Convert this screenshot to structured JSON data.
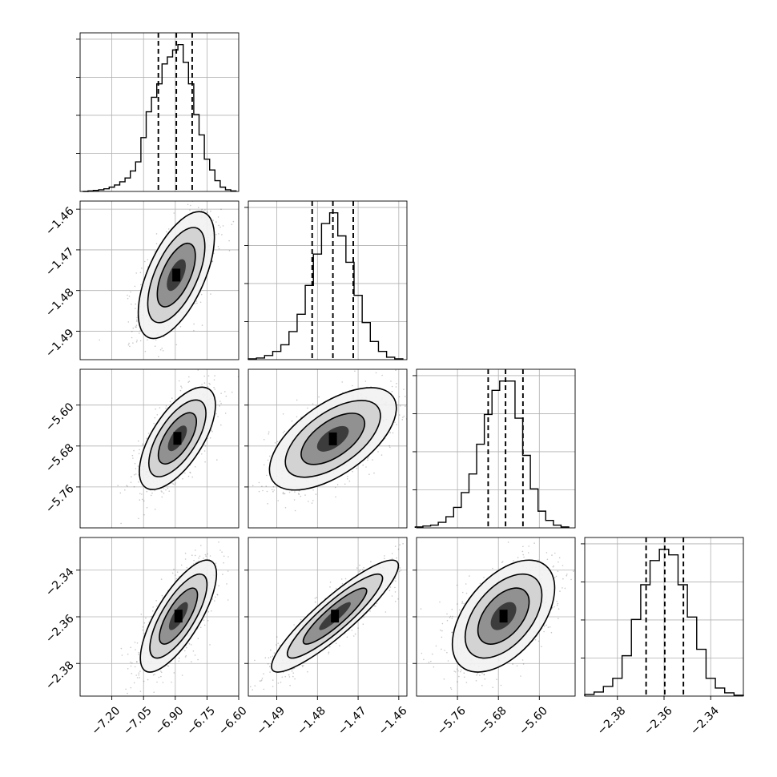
{
  "chart_data": {
    "type": "corner",
    "variables": [
      {
        "ticks": [
          -7.2,
          -7.05,
          -6.9,
          -6.75,
          -6.6
        ],
        "tick_labels": [
          "−7.20",
          "−7.05",
          "−6.90",
          "−6.75",
          "−6.60"
        ],
        "range": [
          -7.35,
          -6.6
        ],
        "quantiles": [
          -6.98,
          -6.895,
          -6.82
        ],
        "hist_bins": [
          -7.325,
          -7.3,
          -7.275,
          -7.25,
          -7.225,
          -7.2,
          -7.175,
          -7.15,
          -7.125,
          -7.1,
          -7.075,
          -7.05,
          -7.025,
          -7.0,
          -6.975,
          -6.95,
          -6.925,
          -6.9,
          -6.875,
          -6.85,
          -6.825,
          -6.8,
          -6.775,
          -6.75,
          -6.725,
          -6.7,
          -6.675,
          -6.65,
          -6.625
        ],
        "hist_counts": [
          0,
          1,
          2,
          3,
          5,
          8,
          12,
          18,
          25,
          38,
          55,
          100,
          148,
          175,
          200,
          237,
          250,
          263,
          273,
          240,
          200,
          143,
          105,
          60,
          40,
          20,
          8,
          3,
          1
        ]
      },
      {
        "ticks": [
          -1.49,
          -1.48,
          -1.47,
          -1.46
        ],
        "tick_labels": [
          "−1.49",
          "−1.48",
          "−1.47",
          "−1.46"
        ],
        "range": [
          -1.497,
          -1.458
        ],
        "quantiles": [
          -1.4813,
          -1.4762,
          -1.4712
        ],
        "hist_bins": [
          -1.496,
          -1.494,
          -1.492,
          -1.49,
          -1.488,
          -1.486,
          -1.484,
          -1.482,
          -1.48,
          -1.478,
          -1.476,
          -1.474,
          -1.472,
          -1.47,
          -1.468,
          -1.466,
          -1.464,
          -1.462,
          -1.46
        ],
        "hist_counts": [
          1,
          2,
          5,
          10,
          18,
          34,
          55,
          90,
          128,
          165,
          178,
          150,
          118,
          78,
          45,
          22,
          10,
          3,
          1
        ]
      },
      {
        "ticks": [
          -5.76,
          -5.68,
          -5.6
        ],
        "tick_labels": [
          "−5.76",
          "−5.68",
          "−5.60"
        ],
        "range": [
          -5.84,
          -5.53
        ],
        "quantiles": [
          -5.7,
          -5.666,
          -5.632
        ],
        "hist_bins": [
          -5.835,
          -5.82,
          -5.805,
          -5.79,
          -5.775,
          -5.76,
          -5.745,
          -5.73,
          -5.715,
          -5.7,
          -5.685,
          -5.67,
          -5.655,
          -5.64,
          -5.625,
          -5.61,
          -5.595,
          -5.58,
          -5.565,
          -5.55
        ],
        "hist_counts": [
          1,
          2,
          3,
          6,
          12,
          22,
          38,
          58,
          90,
          122,
          148,
          158,
          158,
          118,
          78,
          42,
          18,
          8,
          3,
          1
        ]
      },
      {
        "ticks": [
          -2.38,
          -2.36,
          -2.34
        ],
        "tick_labels": [
          "−2.38",
          "−2.36",
          "−2.34"
        ],
        "range": [
          -2.394,
          -2.326
        ],
        "quantiles": [
          -2.3677,
          -2.3597,
          -2.3517
        ],
        "hist_bins": [
          -2.392,
          -2.388,
          -2.384,
          -2.38,
          -2.376,
          -2.372,
          -2.368,
          -2.364,
          -2.36,
          -2.356,
          -2.352,
          -2.348,
          -2.344,
          -2.34,
          -2.336,
          -2.332,
          -2.328
        ],
        "hist_counts": [
          2,
          5,
          12,
          22,
          50,
          95,
          138,
          168,
          182,
          175,
          138,
          98,
          58,
          22,
          10,
          4,
          1
        ]
      }
    ],
    "pairs": [
      {
        "x": 0,
        "y": 1,
        "mean": [
          -6.895,
          -1.4762
        ],
        "sd": [
          0.09,
          0.0078
        ],
        "corr": 0.6
      },
      {
        "x": 0,
        "y": 2,
        "mean": [
          -6.89,
          -5.665
        ],
        "sd": [
          0.09,
          0.05
        ],
        "corr": 0.65
      },
      {
        "x": 1,
        "y": 2,
        "mean": [
          -1.4762,
          -5.666
        ],
        "sd": [
          0.0078,
          0.05
        ],
        "corr": 0.6
      },
      {
        "x": 0,
        "y": 3,
        "mean": [
          -6.885,
          -2.3597
        ],
        "sd": [
          0.09,
          0.012
        ],
        "corr": 0.75
      },
      {
        "x": 1,
        "y": 3,
        "mean": [
          -1.4757,
          -2.3597
        ],
        "sd": [
          0.0078,
          0.012
        ],
        "corr": 0.9
      },
      {
        "x": 2,
        "y": 3,
        "mean": [
          -5.67,
          -2.3597
        ],
        "sd": [
          0.05,
          0.012
        ],
        "corr": 0.5
      }
    ],
    "contour_sigmas": [
      0.5,
      1.0,
      1.5,
      2.0
    ],
    "grid": true,
    "histogram_style": "step",
    "quantile_line_style": "dashed"
  }
}
